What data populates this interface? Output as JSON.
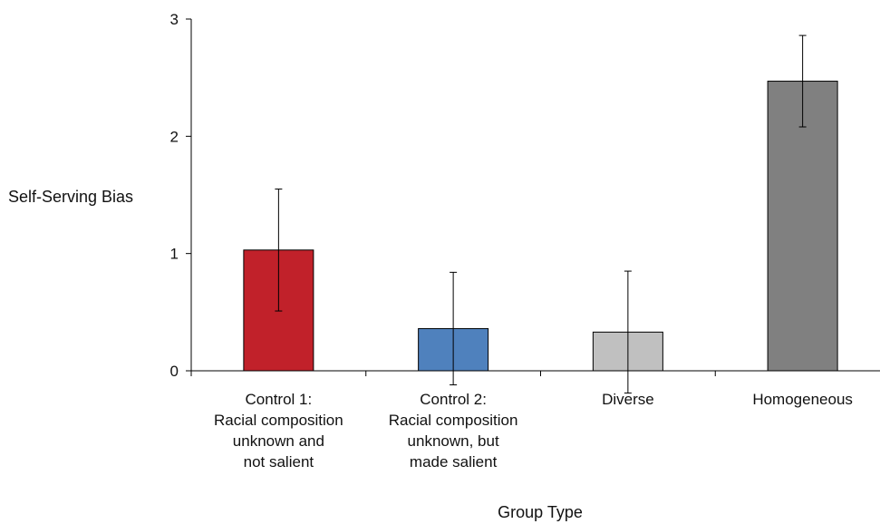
{
  "chart_data": {
    "type": "bar",
    "title": "",
    "xlabel": "Group Type",
    "ylabel": "Self-Serving Bias",
    "ylim": [
      0,
      3
    ],
    "yticks": [
      "0",
      "1",
      "2",
      "3"
    ],
    "grid": false,
    "legend": "none",
    "categories": [
      [
        "Control 1:",
        "Racial composition",
        "unknown and",
        "not salient"
      ],
      [
        "Control 2:",
        "Racial composition",
        "unknown, but",
        "made salient"
      ],
      [
        "Diverse"
      ],
      [
        "Homogeneous"
      ]
    ],
    "values": [
      1.03,
      0.36,
      0.33,
      2.47
    ],
    "error": [
      0.52,
      0.48,
      0.52,
      0.39
    ],
    "colors": [
      "#c1212a",
      "#4f81bd",
      "#c0c0c0",
      "#808080"
    ]
  }
}
